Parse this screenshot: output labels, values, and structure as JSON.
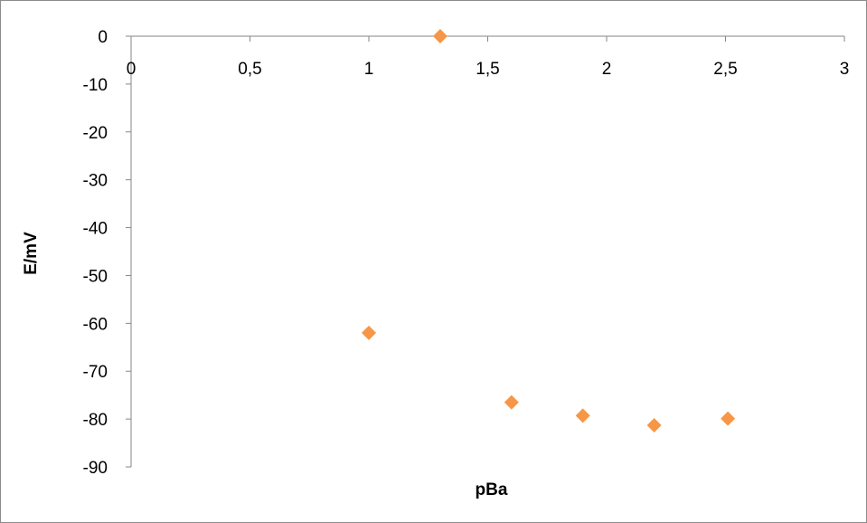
{
  "chart_data": {
    "type": "scatter",
    "title": "",
    "xlabel": "pBa",
    "ylabel": "E/mV",
    "xlim": [
      0,
      3
    ],
    "ylim": [
      -90,
      0
    ],
    "x_ticks": [
      0,
      0.5,
      1,
      1.5,
      2,
      2.5,
      3
    ],
    "x_tick_labels": [
      "0",
      "0,5",
      "1",
      "1,5",
      "2",
      "2,5",
      "3"
    ],
    "y_ticks": [
      0,
      -10,
      -20,
      -30,
      -40,
      -50,
      -60,
      -70,
      -80,
      -90
    ],
    "y_tick_labels": [
      "0",
      "-10",
      "-20",
      "-30",
      "-40",
      "-50",
      "-60",
      "-70",
      "-80",
      "-90"
    ],
    "grid": false,
    "legend": "none",
    "marker": "diamond",
    "marker_color": "#f79646",
    "series": [
      {
        "x": [
          1.0,
          1.3,
          1.6,
          1.9,
          2.2,
          2.51
        ],
        "y": [
          -62,
          0,
          -76.5,
          -79.3,
          -81.3,
          -79.9
        ]
      }
    ]
  }
}
